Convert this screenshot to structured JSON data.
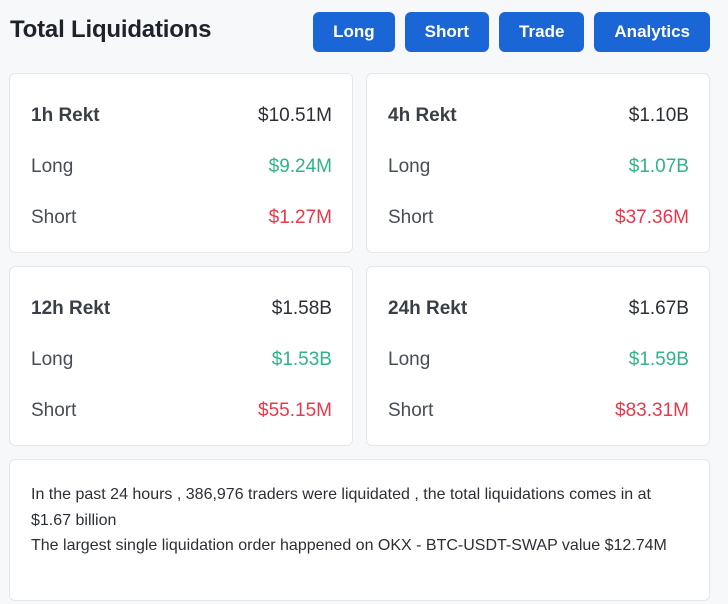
{
  "header": {
    "title": "Total Liquidations",
    "tabs": [
      "Long",
      "Short",
      "Trade",
      "Analytics"
    ]
  },
  "cards": [
    {
      "label": "1h Rekt",
      "total": "$10.51M",
      "long_label": "Long",
      "long": "$9.24M",
      "short_label": "Short",
      "short": "$1.27M"
    },
    {
      "label": "4h Rekt",
      "total": "$1.10B",
      "long_label": "Long",
      "long": "$1.07B",
      "short_label": "Short",
      "short": "$37.36M"
    },
    {
      "label": "12h Rekt",
      "total": "$1.58B",
      "long_label": "Long",
      "long": "$1.53B",
      "short_label": "Short",
      "short": "$55.15M"
    },
    {
      "label": "24h Rekt",
      "total": "$1.67B",
      "long_label": "Long",
      "long": "$1.59B",
      "short_label": "Short",
      "short": "$83.31M"
    }
  ],
  "summary": {
    "line1": "In the past 24 hours , 386,976 traders were liquidated , the total liquidations comes in at $1.67 billion",
    "line2": "The largest single liquidation order happened on OKX - BTC-USDT-SWAP value $12.74M"
  },
  "colors": {
    "accent": "#1a66d6",
    "long": "#2eb38a",
    "short": "#e8384b"
  }
}
